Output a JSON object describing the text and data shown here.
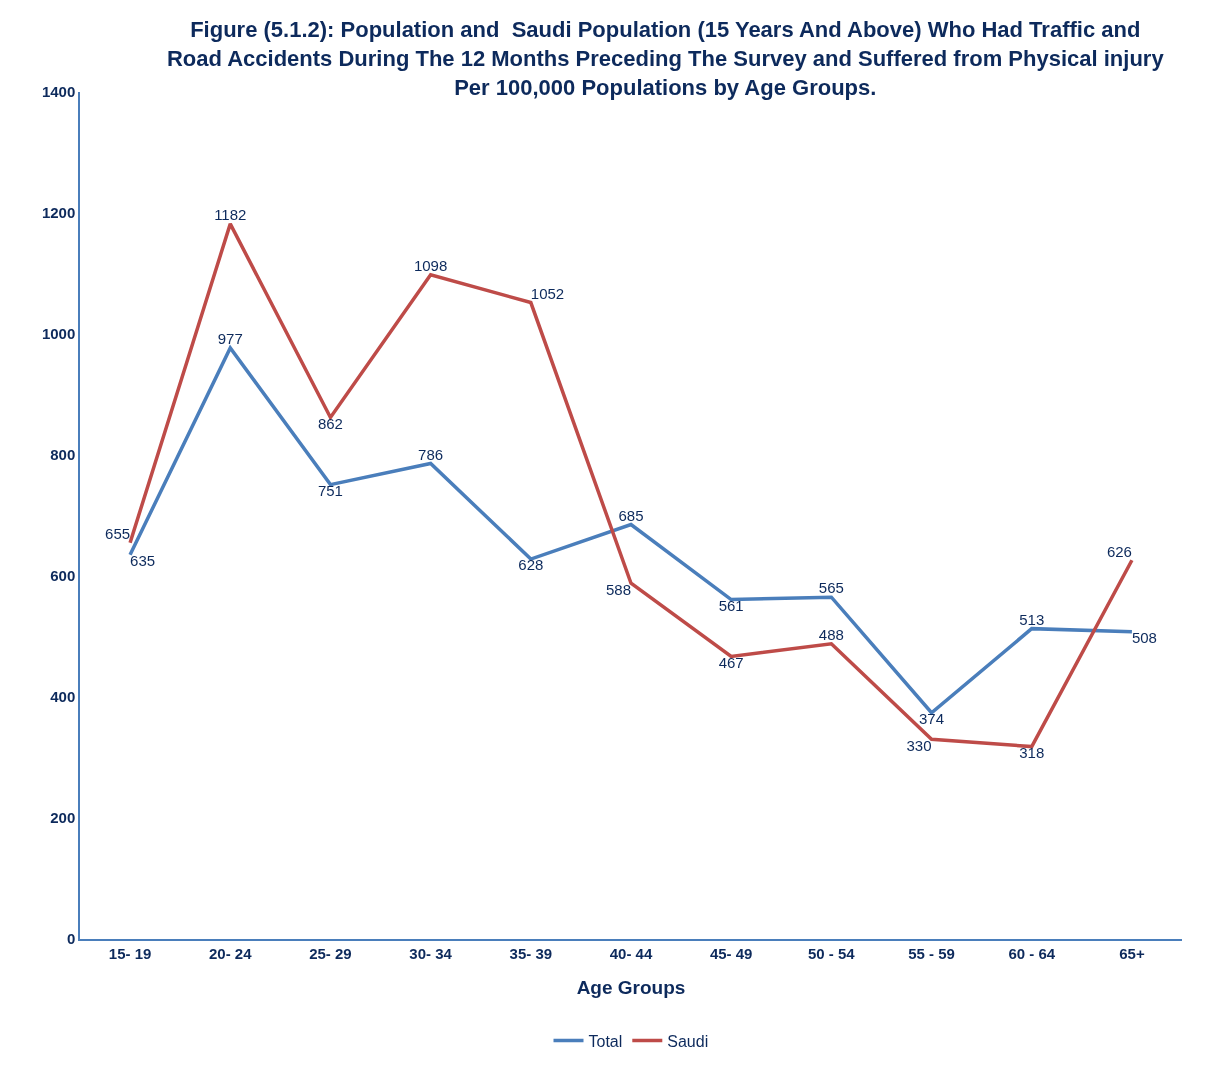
{
  "chart_data": {
    "type": "line",
    "title": "Figure (5.1.2): Population and  Saudi Population (15 Years And Above) Who Had Traffic and\nRoad Accidents During The 12 Months Preceding The Survey and Suffered from Physical injury\nPer 100,000 Populations by Age Groups.",
    "xlabel": "Age Groups",
    "categories": [
      "15- 19",
      "20- 24",
      "25- 29",
      "30- 34",
      "35- 39",
      "40- 44",
      "45- 49",
      "50 - 54",
      "55 - 59",
      "60 - 64",
      "65+"
    ],
    "series": [
      {
        "name": "Total",
        "color": "#4a7ebb",
        "values": [
          635,
          977,
          751,
          786,
          628,
          685,
          561,
          565,
          374,
          513,
          508
        ]
      },
      {
        "name": "Saudi",
        "color": "#be4b48",
        "values": [
          655,
          1182,
          862,
          1098,
          1052,
          588,
          467,
          488,
          330,
          318,
          626
        ]
      }
    ],
    "ylim": [
      0,
      1400
    ],
    "yticks": [
      0,
      200,
      400,
      600,
      800,
      1000,
      1200,
      1400
    ],
    "grid": false,
    "legend": "bottom",
    "marker": "none",
    "line_style": "solid",
    "data_labels": true
  }
}
